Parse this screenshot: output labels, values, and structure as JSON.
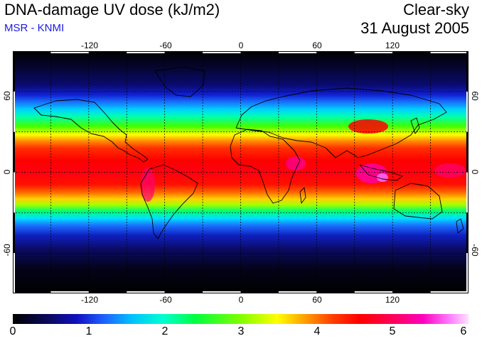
{
  "header": {
    "title": "DNA-damage UV dose (kJ/m2)",
    "source": "MSR - KNMI",
    "sky_condition": "Clear-sky",
    "date": "31 August 2005"
  },
  "map": {
    "projection": "equirectangular",
    "lon_range": [
      -180,
      180
    ],
    "lat_range": [
      -90,
      90
    ],
    "grid_lons": [
      -150,
      -120,
      -90,
      -60,
      -30,
      0,
      30,
      60,
      90,
      120,
      150
    ],
    "grid_lats": [
      -60,
      -30,
      0,
      30,
      60
    ],
    "lon_labels": [
      "-120",
      "-60",
      "0",
      "60",
      "120"
    ],
    "lat_labels": [
      "60",
      "0",
      "-60"
    ]
  },
  "colorbar": {
    "min": 0,
    "max": 6,
    "tick_labels": [
      "0",
      "1",
      "2",
      "3",
      "4",
      "5",
      "6"
    ],
    "colors": [
      "#000000",
      "#1010c0",
      "#2060ff",
      "#00ffd0",
      "#00ff40",
      "#ffff00",
      "#ff0000",
      "#ff00c0",
      "#ffe0ff"
    ]
  }
}
